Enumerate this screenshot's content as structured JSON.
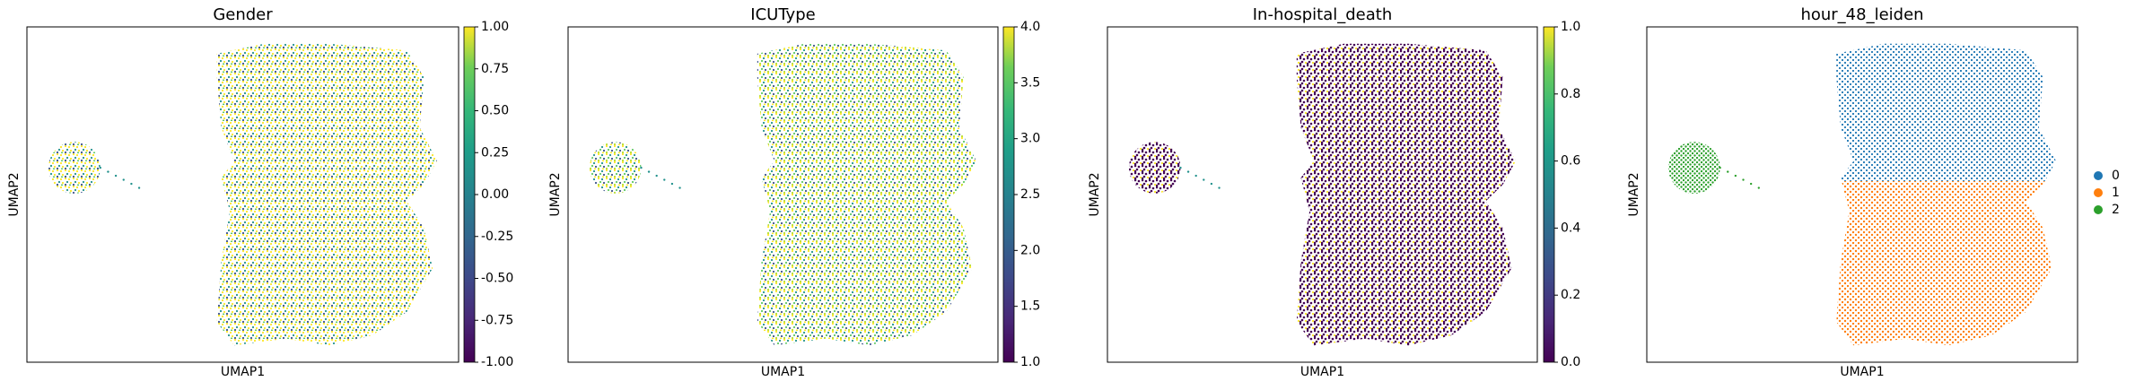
{
  "chart_data": [
    {
      "type": "scatter",
      "title": "Gender",
      "xlabel": "UMAP1",
      "ylabel": "UMAP2",
      "colormap": "viridis",
      "clim": [
        -1,
        1
      ],
      "cticks": [
        {
          "value": -1,
          "label": "-1.00"
        },
        {
          "value": -0.75,
          "label": "-0.75"
        },
        {
          "value": -0.5,
          "label": "-0.50"
        },
        {
          "value": -0.25,
          "label": "-0.25"
        },
        {
          "value": 0,
          "label": "0.00"
        },
        {
          "value": 0.25,
          "label": "0.25"
        },
        {
          "value": 0.5,
          "label": "0.50"
        },
        {
          "value": 0.75,
          "label": "0.75"
        },
        {
          "value": 1,
          "label": "1.00"
        }
      ]
    },
    {
      "type": "scatter",
      "title": "ICUType",
      "xlabel": "UMAP1",
      "ylabel": "UMAP2",
      "colormap": "viridis",
      "clim": [
        1,
        4
      ],
      "cticks": [
        {
          "value": 1,
          "label": "1.0"
        },
        1.5,
        {
          "value": 2,
          "label": "2.0"
        },
        2.5,
        {
          "value": 3,
          "label": "3.0"
        },
        3.5,
        {
          "value": 4,
          "label": "4.0"
        }
      ]
    },
    {
      "type": "scatter",
      "title": "In-hospital_death",
      "xlabel": "UMAP1",
      "ylabel": "UMAP2",
      "colormap": "viridis",
      "clim": [
        0,
        1
      ],
      "cticks": [
        {
          "value": 0,
          "label": "0.0"
        },
        0.2,
        0.4,
        0.6,
        0.8,
        {
          "value": 1,
          "label": "1.0"
        }
      ]
    },
    {
      "type": "scatter",
      "title": "hour_48_leiden",
      "xlabel": "UMAP1",
      "ylabel": "UMAP2",
      "legend": [
        {
          "name": "0",
          "color": "#1f77b4"
        },
        {
          "name": "1",
          "color": "#ff7f0e"
        },
        {
          "name": "2",
          "color": "#2ca02c"
        }
      ]
    }
  ]
}
